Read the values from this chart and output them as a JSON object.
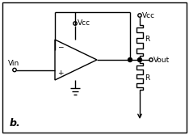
{
  "bg_color": "#ffffff",
  "border_color": "#000000",
  "line_color": "#000000",
  "label_b": "b.",
  "label_vin": "Vin",
  "label_vcc_center": "Vcc",
  "label_vcc_right": "Vcc",
  "label_r_top": "R",
  "label_vout": "Vout",
  "label_r_bot": "R",
  "fig_width": 2.34,
  "fig_height": 1.67,
  "dpi": 100
}
